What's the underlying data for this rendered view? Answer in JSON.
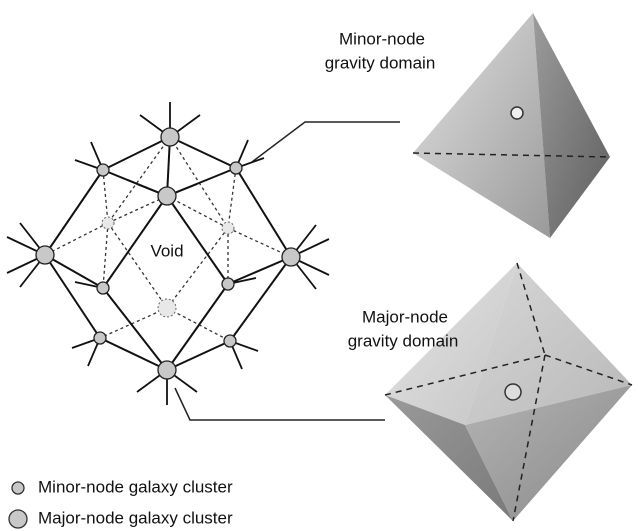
{
  "minor_domain": {
    "line1": "Minor-node",
    "line2": "gravity domain"
  },
  "major_domain": {
    "line1": "Major-node",
    "line2": "gravity domain"
  },
  "void_label": "Void",
  "legend": [
    "Minor-node galaxy cluster",
    "Major-node galaxy cluster"
  ]
}
